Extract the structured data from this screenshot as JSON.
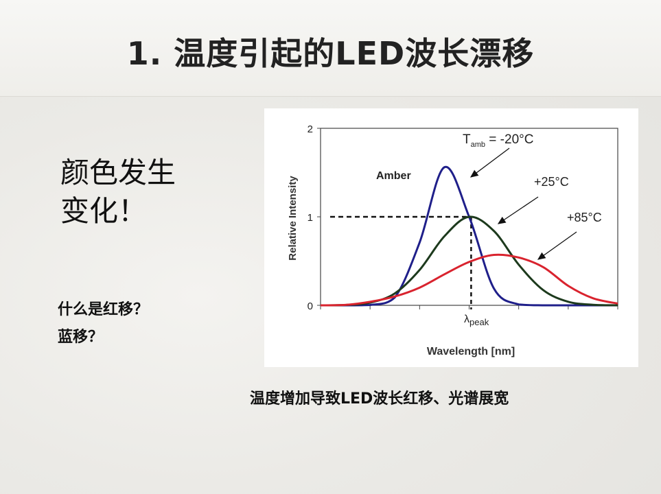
{
  "slide": {
    "title": "1. 温度引起的LED波长漂移",
    "headline_lines": [
      "颜色发生",
      "变化！"
    ],
    "questions": [
      "什么是红移？",
      "蓝移？"
    ],
    "caption": "温度增加导致LED波长红移、光谱展宽"
  },
  "chart_data": {
    "type": "line",
    "title": "",
    "xlabel": "Wavelength [nm]",
    "ylabel": "Relative Intensity",
    "ylim": [
      0,
      2
    ],
    "yticks": [
      "0",
      "1",
      "2"
    ],
    "x_tick_count": 7,
    "x_marker_label": "λpeak",
    "x_marker_label_main": "λ",
    "x_marker_label_sub": "peak",
    "grid": false,
    "annotation_amber": "Amber",
    "x": [
      0,
      0.5,
      1,
      1.5,
      2,
      2.5,
      3,
      3.5,
      4,
      4.5,
      5,
      5.5,
      6
    ],
    "series": [
      {
        "label_main": "T",
        "label_sub": "amb",
        "label_rest": " = -20°C",
        "color": "#1f1f8a",
        "values": [
          0,
          0,
          0.004,
          0.09,
          0.71,
          1.56,
          1.0,
          0.19,
          0.01,
          0,
          0,
          0,
          0
        ]
      },
      {
        "label": "+25°C",
        "color": "#1d3a1d",
        "values": [
          0,
          0.004,
          0.03,
          0.135,
          0.4,
          0.78,
          1.0,
          0.84,
          0.46,
          0.17,
          0.04,
          0.006,
          0
        ]
      },
      {
        "label": "+85°C",
        "color": "#d9232e",
        "values": [
          0,
          0.005,
          0.04,
          0.1,
          0.2,
          0.35,
          0.49,
          0.57,
          0.54,
          0.43,
          0.22,
          0.08,
          0.02
        ]
      }
    ],
    "peak_reference": {
      "x": 3.04,
      "y": 1
    }
  }
}
